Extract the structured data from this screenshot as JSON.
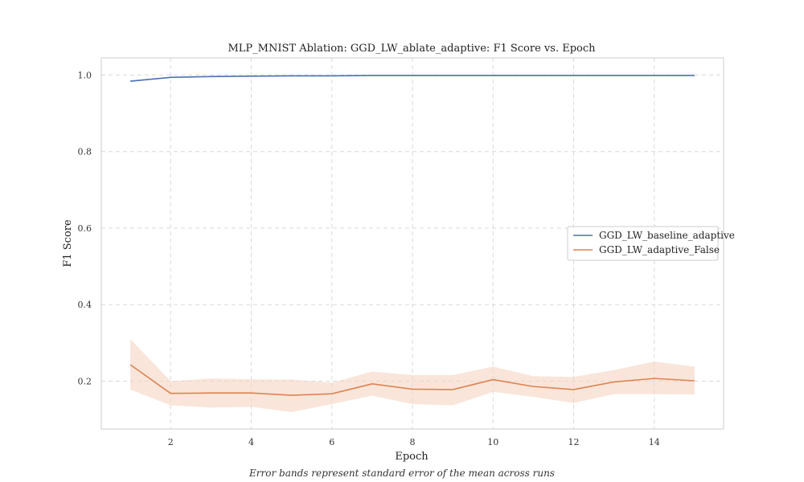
{
  "chart_data": {
    "type": "line",
    "title": "MLP_MNIST Ablation: GGD_LW_ablate_adaptive: F1 Score vs. Epoch",
    "xlabel": "Epoch",
    "ylabel": "F1 Score",
    "xlim": [
      0.28,
      15.72
    ],
    "ylim": [
      0.075,
      1.045
    ],
    "xticks": [
      2,
      4,
      6,
      8,
      10,
      12,
      14
    ],
    "yticks": [
      0.2,
      0.4,
      0.6,
      0.8,
      1.0
    ],
    "ytick_labels": [
      "0.2",
      "0.4",
      "0.6",
      "0.8",
      "1.0"
    ],
    "grid": true,
    "legend_position": "center-right",
    "x": [
      1,
      2,
      3,
      4,
      5,
      6,
      7,
      8,
      9,
      10,
      11,
      12,
      13,
      14,
      15
    ],
    "series": [
      {
        "name": "GGD_LW_baseline_adaptive",
        "color": "#4c72b0",
        "values": [
          0.984,
          0.994,
          0.996,
          0.997,
          0.998,
          0.998,
          0.999,
          0.999,
          0.999,
          0.999,
          0.999,
          0.999,
          0.999,
          0.999,
          0.999
        ],
        "lower": [
          0.982,
          0.993,
          0.995,
          0.996,
          0.997,
          0.997,
          0.998,
          0.998,
          0.998,
          0.998,
          0.998,
          0.998,
          0.998,
          0.998,
          0.998
        ],
        "upper": [
          0.986,
          0.995,
          0.997,
          0.998,
          0.999,
          0.999,
          1.0,
          1.0,
          1.0,
          1.0,
          1.0,
          1.0,
          1.0,
          1.0,
          1.0
        ]
      },
      {
        "name": "GGD_LW_adaptive_False",
        "color": "#dd8452",
        "band_color": "#f5d3c1",
        "values": [
          0.243,
          0.168,
          0.169,
          0.169,
          0.163,
          0.167,
          0.193,
          0.179,
          0.178,
          0.204,
          0.186,
          0.178,
          0.198,
          0.207,
          0.201
        ],
        "lower": [
          0.178,
          0.137,
          0.131,
          0.133,
          0.119,
          0.14,
          0.162,
          0.14,
          0.137,
          0.172,
          0.159,
          0.143,
          0.166,
          0.166,
          0.165
        ],
        "upper": [
          0.31,
          0.2,
          0.207,
          0.205,
          0.204,
          0.196,
          0.225,
          0.216,
          0.216,
          0.238,
          0.213,
          0.211,
          0.229,
          0.251,
          0.238
        ]
      }
    ]
  },
  "footnote": "Error bands represent standard error of the mean across runs"
}
